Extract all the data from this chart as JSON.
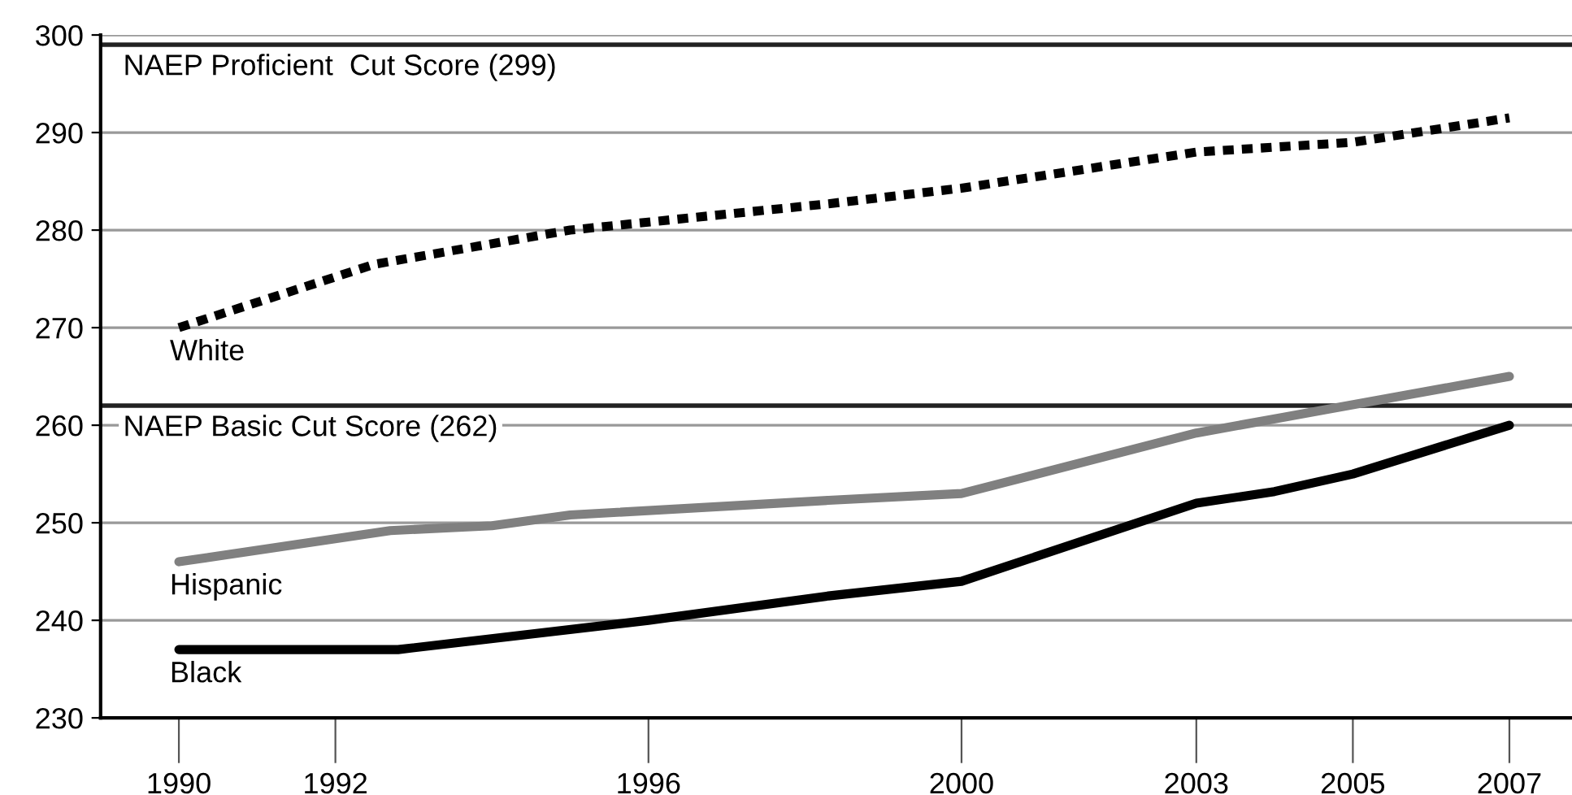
{
  "chart_data": {
    "type": "line",
    "xlim": [
      1989,
      2007.8
    ],
    "xticks": [
      1990,
      1992,
      1996,
      2000,
      2003,
      2005,
      2007
    ],
    "ylim": [
      230,
      300
    ],
    "yticks": [
      230,
      240,
      250,
      260,
      270,
      280,
      290,
      300
    ],
    "grid": "y",
    "legend": false,
    "marker": "none",
    "series": [
      {
        "name": "White",
        "color": "#000000",
        "line_style": "dashed",
        "x": [
          1990,
          1992.5,
          1995,
          1998.3,
          2000,
          2003,
          2005,
          2007
        ],
        "values": [
          270,
          276.5,
          280,
          282.7,
          284.3,
          288,
          289,
          291.5
        ]
      },
      {
        "name": "Hispanic",
        "color": "#808080",
        "line_style": "solid",
        "x": [
          1990,
          1992.7,
          1994,
          1995,
          1998.3,
          2000,
          2003,
          2007
        ],
        "values": [
          246,
          249.2,
          249.7,
          250.8,
          252.3,
          253,
          259.2,
          265
        ]
      },
      {
        "name": "Black",
        "color": "#000000",
        "line_style": "solid",
        "x": [
          1990,
          1992.8,
          1996,
          1998.3,
          2000,
          2003,
          2004,
          2005,
          2007
        ],
        "values": [
          237,
          237,
          240,
          242.5,
          244,
          252,
          253.2,
          255,
          260
        ]
      }
    ],
    "ref_lines": [
      {
        "axis": "y",
        "value": 299,
        "label": "NAEP Proficient  Cut Score (299)",
        "color": "#222222"
      },
      {
        "axis": "y",
        "value": 262,
        "label": "NAEP Basic Cut Score (262)",
        "color": "#222222"
      }
    ]
  }
}
